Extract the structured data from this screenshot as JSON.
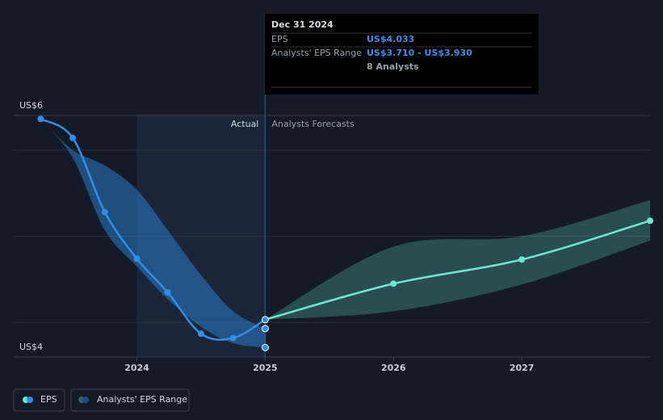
{
  "chart_data": {
    "type": "line",
    "xlim": [
      2023.04,
      2028.0
    ],
    "xticks": [
      2024,
      2025,
      2026,
      2027
    ],
    "ylim": [
      3.6,
      6.4
    ],
    "yticks": [
      {
        "value": 4,
        "label": "US$4"
      },
      {
        "value": 5,
        "label": null
      },
      {
        "value": 6,
        "label": "US$6"
      }
    ],
    "grid": true,
    "legend": [
      "EPS",
      "Analysts' EPS Range"
    ],
    "highlight": [
      2024,
      2025
    ],
    "divider_x": 2025,
    "period_labels": [
      "Actual",
      "Analysts Forecasts"
    ],
    "series": [
      {
        "name": "EPS",
        "color": "#2f8fe8",
        "x": [
          2023.25,
          2023.5,
          2023.75,
          2024.0,
          2024.24,
          2024.5,
          2024.75,
          2025.0
        ],
        "values": [
          6.36,
          6.14,
          5.28,
          4.74,
          4.35,
          3.87,
          3.82,
          4.033
        ]
      },
      {
        "color": "#6fe6d2",
        "x": [
          2025.0,
          2026.0,
          2027.0,
          2028.0
        ],
        "values": [
          4.033,
          4.45,
          4.73,
          5.18
        ]
      }
    ],
    "bands": [
      {
        "color": "#2f8fe8",
        "x": [
          2023.25,
          2023.5,
          2023.75,
          2024.0,
          2024.24,
          2024.5,
          2024.75,
          2025.0
        ],
        "low": [
          6.36,
          5.91,
          5.07,
          4.65,
          4.27,
          3.95,
          3.76,
          3.71
        ],
        "high": [
          6.36,
          6.0,
          5.82,
          5.54,
          5.07,
          4.55,
          4.13,
          3.93
        ]
      },
      {
        "color": "#5ac8b4",
        "x": [
          2025.0,
          2026.0,
          2027.0,
          2028.0
        ],
        "low": [
          4.033,
          4.13,
          4.44,
          4.95
        ],
        "high": [
          4.033,
          4.88,
          5.0,
          5.42
        ]
      }
    ],
    "markers": {
      "x": 2025,
      "color": "#2f8fe8",
      "values": [
        3.93,
        3.71
      ]
    },
    "tooltip": {
      "date": "Dec 31 2024",
      "rows": [
        [
          "EPS",
          "US$4.033"
        ],
        [
          "Analysts' EPS Range",
          "US$3.710 - US$3.930"
        ],
        [
          "",
          "8 Analysts"
        ]
      ]
    }
  }
}
